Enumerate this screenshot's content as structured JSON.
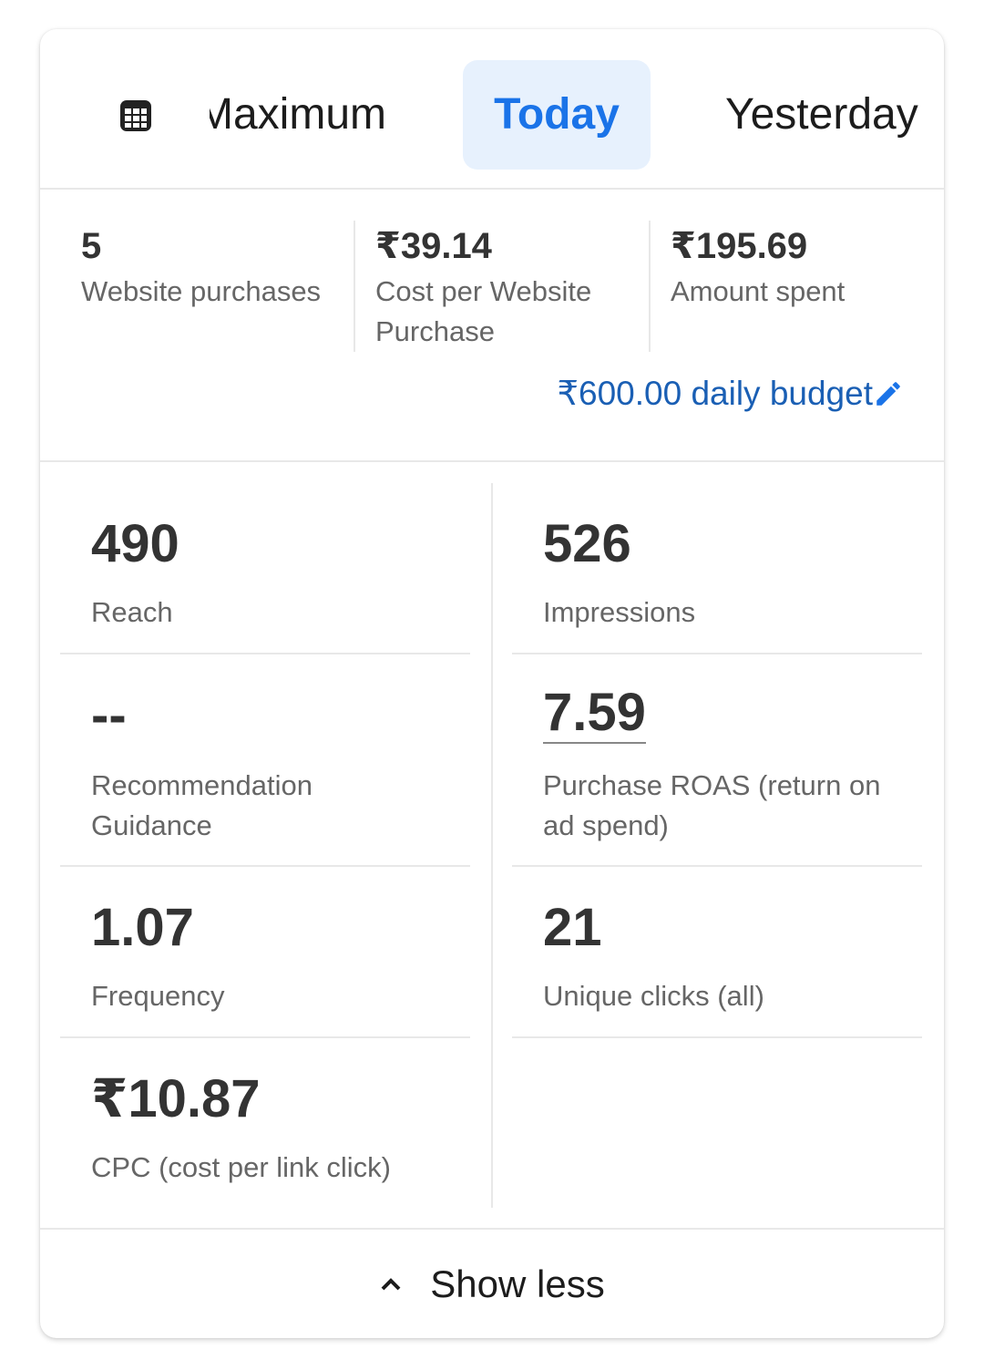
{
  "tabs": {
    "icon": "calendar-grid-icon",
    "items": [
      {
        "label": "Maximum"
      },
      {
        "label": "Today",
        "selected": true
      },
      {
        "label": "Yesterday"
      }
    ]
  },
  "summary": {
    "items": [
      {
        "value": "5",
        "label": "Website purchases"
      },
      {
        "value": "₹39.14",
        "label": "Cost per Website Purchase"
      },
      {
        "value": "₹195.69",
        "label": "Amount spent"
      }
    ],
    "budget": "₹600.00 daily budget",
    "budget_icon": "pencil-icon"
  },
  "metrics": [
    {
      "value": "490",
      "label": "Reach"
    },
    {
      "value": "526",
      "label": "Impressions"
    },
    {
      "value": "--",
      "label": "Recommendation Guidance"
    },
    {
      "value": "7.59",
      "label": "Purchase ROAS (return on ad spend)"
    },
    {
      "value": "1.07",
      "label": "Frequency"
    },
    {
      "value": "21",
      "label": "Unique clicks (all)"
    },
    {
      "value": "₹10.87",
      "label": "CPC (cost per link click)"
    }
  ],
  "footer": {
    "label": "Show less",
    "icon": "chevron-up-icon"
  },
  "colors": {
    "accent": "#1a73e8",
    "selected_tab_bg": "#e7f1fd",
    "link": "#1a5fb4"
  }
}
